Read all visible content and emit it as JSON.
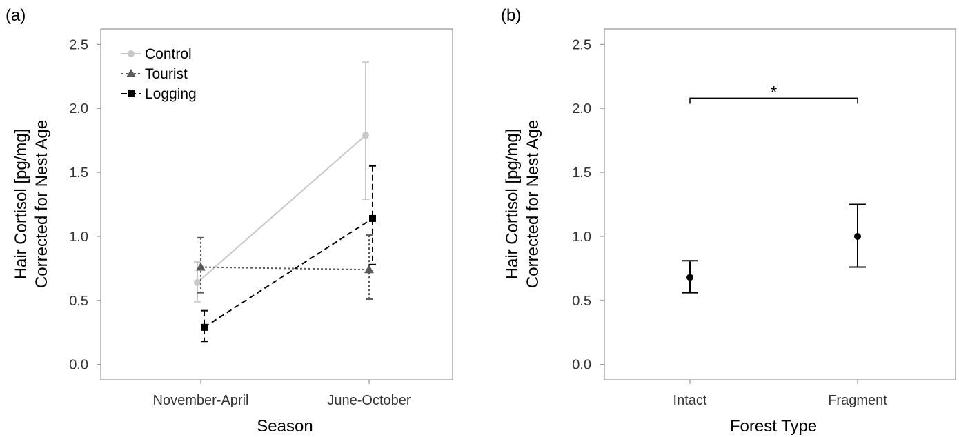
{
  "chart_data": [
    {
      "type": "line",
      "panel_label": "(a)",
      "xlabel": "Season",
      "ylabel": [
        "Hair Cortisol [pg/mg]",
        "Corrected for Nest Age"
      ],
      "categories": [
        "November-April",
        "June-October"
      ],
      "ylim": [
        -0.12,
        2.62
      ],
      "yticks": [
        0.0,
        0.5,
        1.0,
        1.5,
        2.0,
        2.5
      ],
      "ytick_labels": [
        "0.0",
        "0.5",
        "1.0",
        "1.5",
        "2.0",
        "2.5"
      ],
      "grid": false,
      "legend_position": "top-left",
      "series": [
        {
          "name": "Control",
          "marker": "circle",
          "color": "#c8c8c8",
          "dash": "solid",
          "dodge": -0.05,
          "values": [
            0.64,
            1.79
          ],
          "lower": [
            0.49,
            1.29
          ],
          "upper": [
            0.8,
            2.36
          ]
        },
        {
          "name": "Tourist",
          "marker": "triangle",
          "color": "#5a5a5a",
          "dash": "dotted",
          "dodge": 0.0,
          "values": [
            0.76,
            0.74
          ],
          "lower": [
            0.56,
            0.51
          ],
          "upper": [
            0.99,
            1.01
          ]
        },
        {
          "name": "Logging",
          "marker": "square",
          "color": "#000000",
          "dash": "dashed",
          "dodge": 0.05,
          "values": [
            0.29,
            1.14
          ],
          "lower": [
            0.18,
            0.78
          ],
          "upper": [
            0.42,
            1.55
          ]
        }
      ]
    },
    {
      "type": "scatter",
      "panel_label": "(b)",
      "xlabel": "Forest Type",
      "ylabel": [
        "Hair Cortisol [pg/mg]",
        "Corrected for Nest Age"
      ],
      "categories": [
        "Intact",
        "Fragment"
      ],
      "ylim": [
        -0.12,
        2.62
      ],
      "yticks": [
        0.0,
        0.5,
        1.0,
        1.5,
        2.0,
        2.5
      ],
      "ytick_labels": [
        "0.0",
        "0.5",
        "1.0",
        "1.5",
        "2.0",
        "2.5"
      ],
      "grid": false,
      "values": [
        0.68,
        1.0
      ],
      "lower": [
        0.56,
        0.76
      ],
      "upper": [
        0.81,
        1.25
      ],
      "significance": {
        "label": "*",
        "y": 2.08,
        "from": "Intact",
        "to": "Fragment"
      }
    }
  ]
}
